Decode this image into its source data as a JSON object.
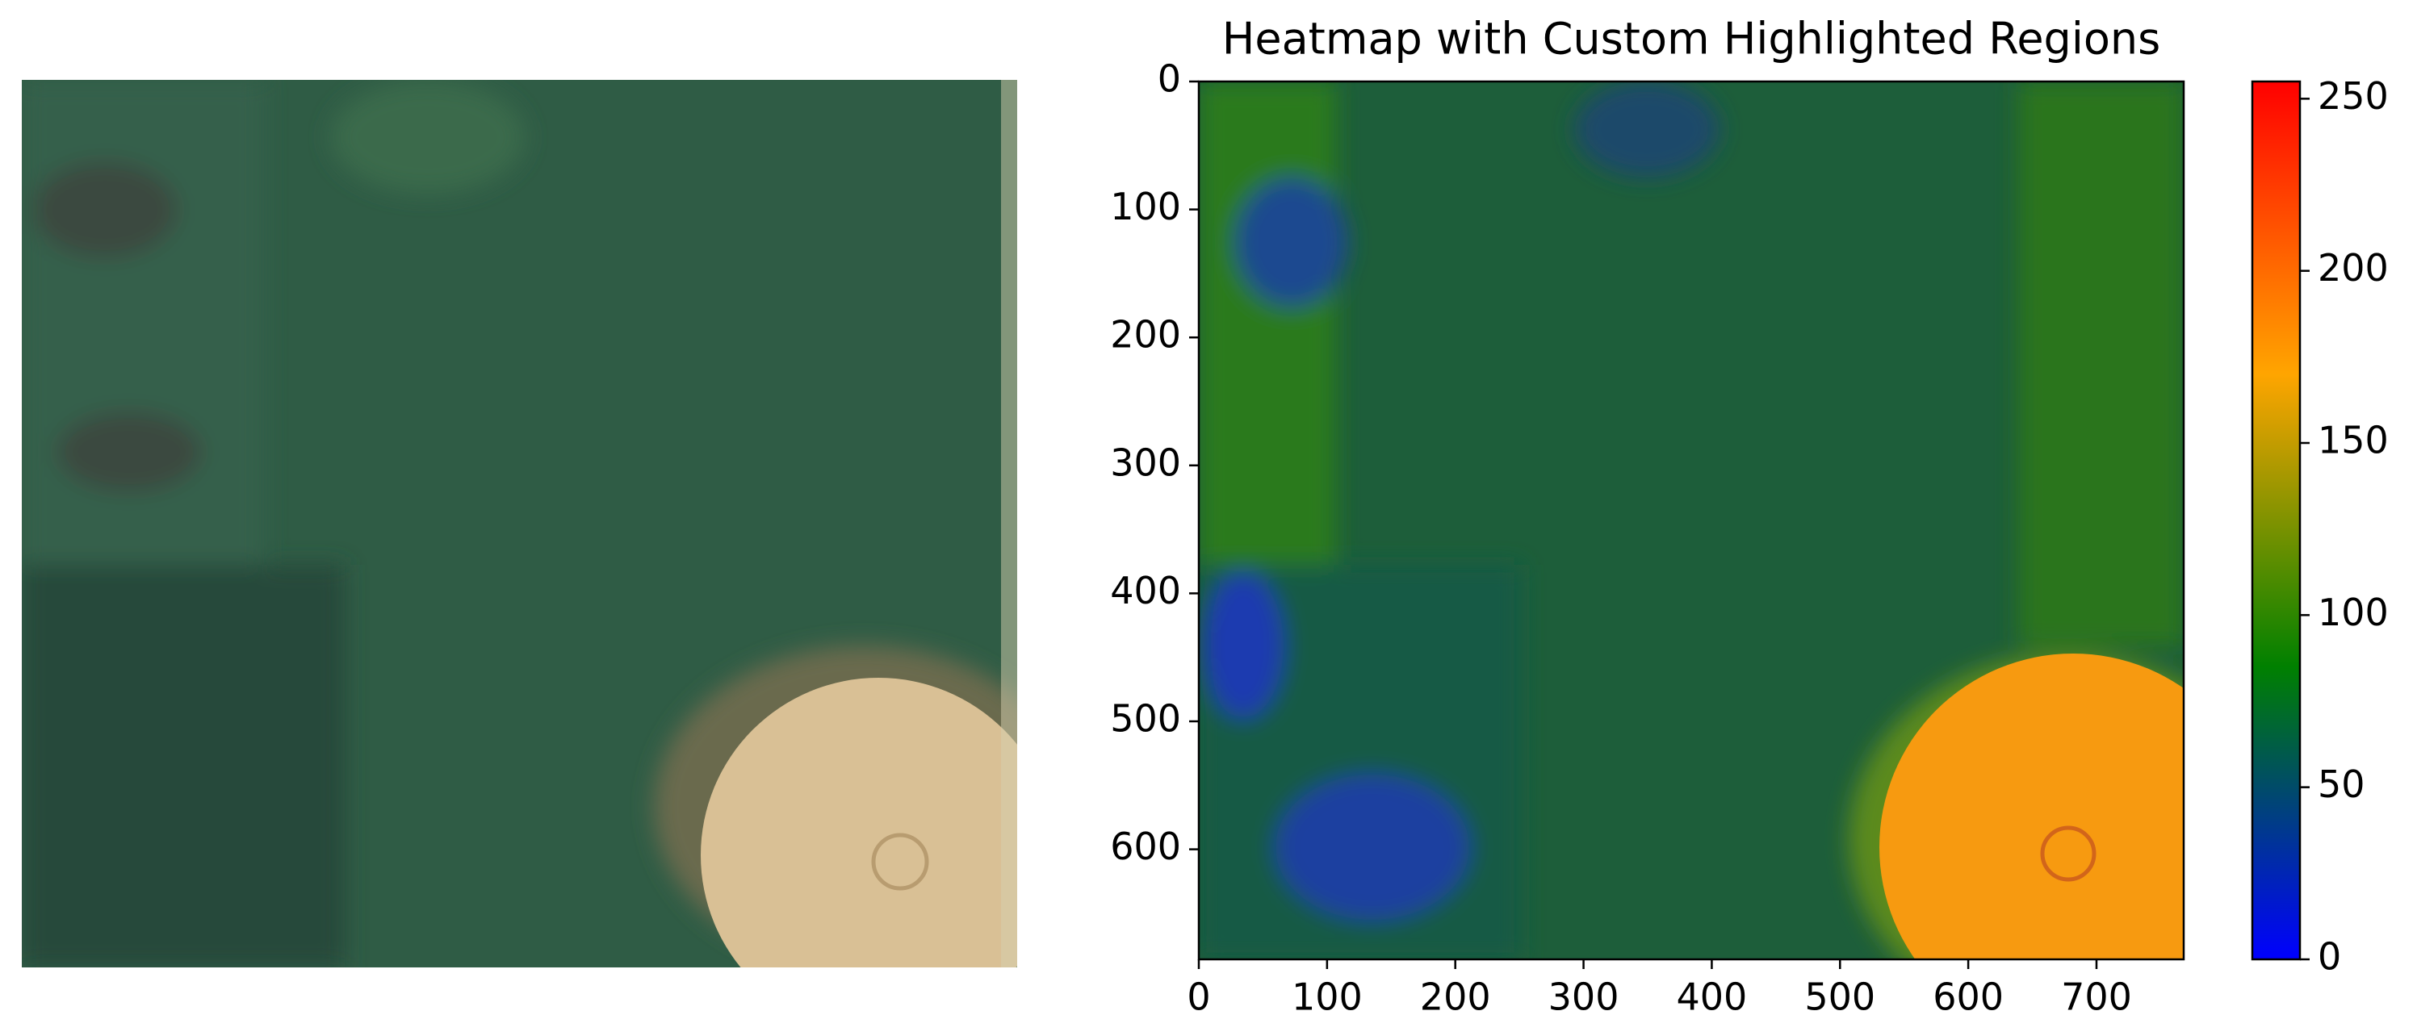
{
  "chart_data": {
    "type": "heatmap",
    "title": "Heatmap with Custom Highlighted Regions",
    "xlim": [
      0,
      768
    ],
    "ylim": [
      686,
      0
    ],
    "xticks": [
      0,
      100,
      200,
      300,
      400,
      500,
      600,
      700
    ],
    "yticks": [
      0,
      100,
      200,
      300,
      400,
      500,
      600
    ],
    "colorbar": {
      "lim": [
        0,
        255
      ],
      "ticks": [
        0,
        50,
        100,
        150,
        200,
        250
      ],
      "colors": [
        "#0000ff",
        "#008000",
        "#ffa500",
        "#ff0000"
      ]
    }
  }
}
